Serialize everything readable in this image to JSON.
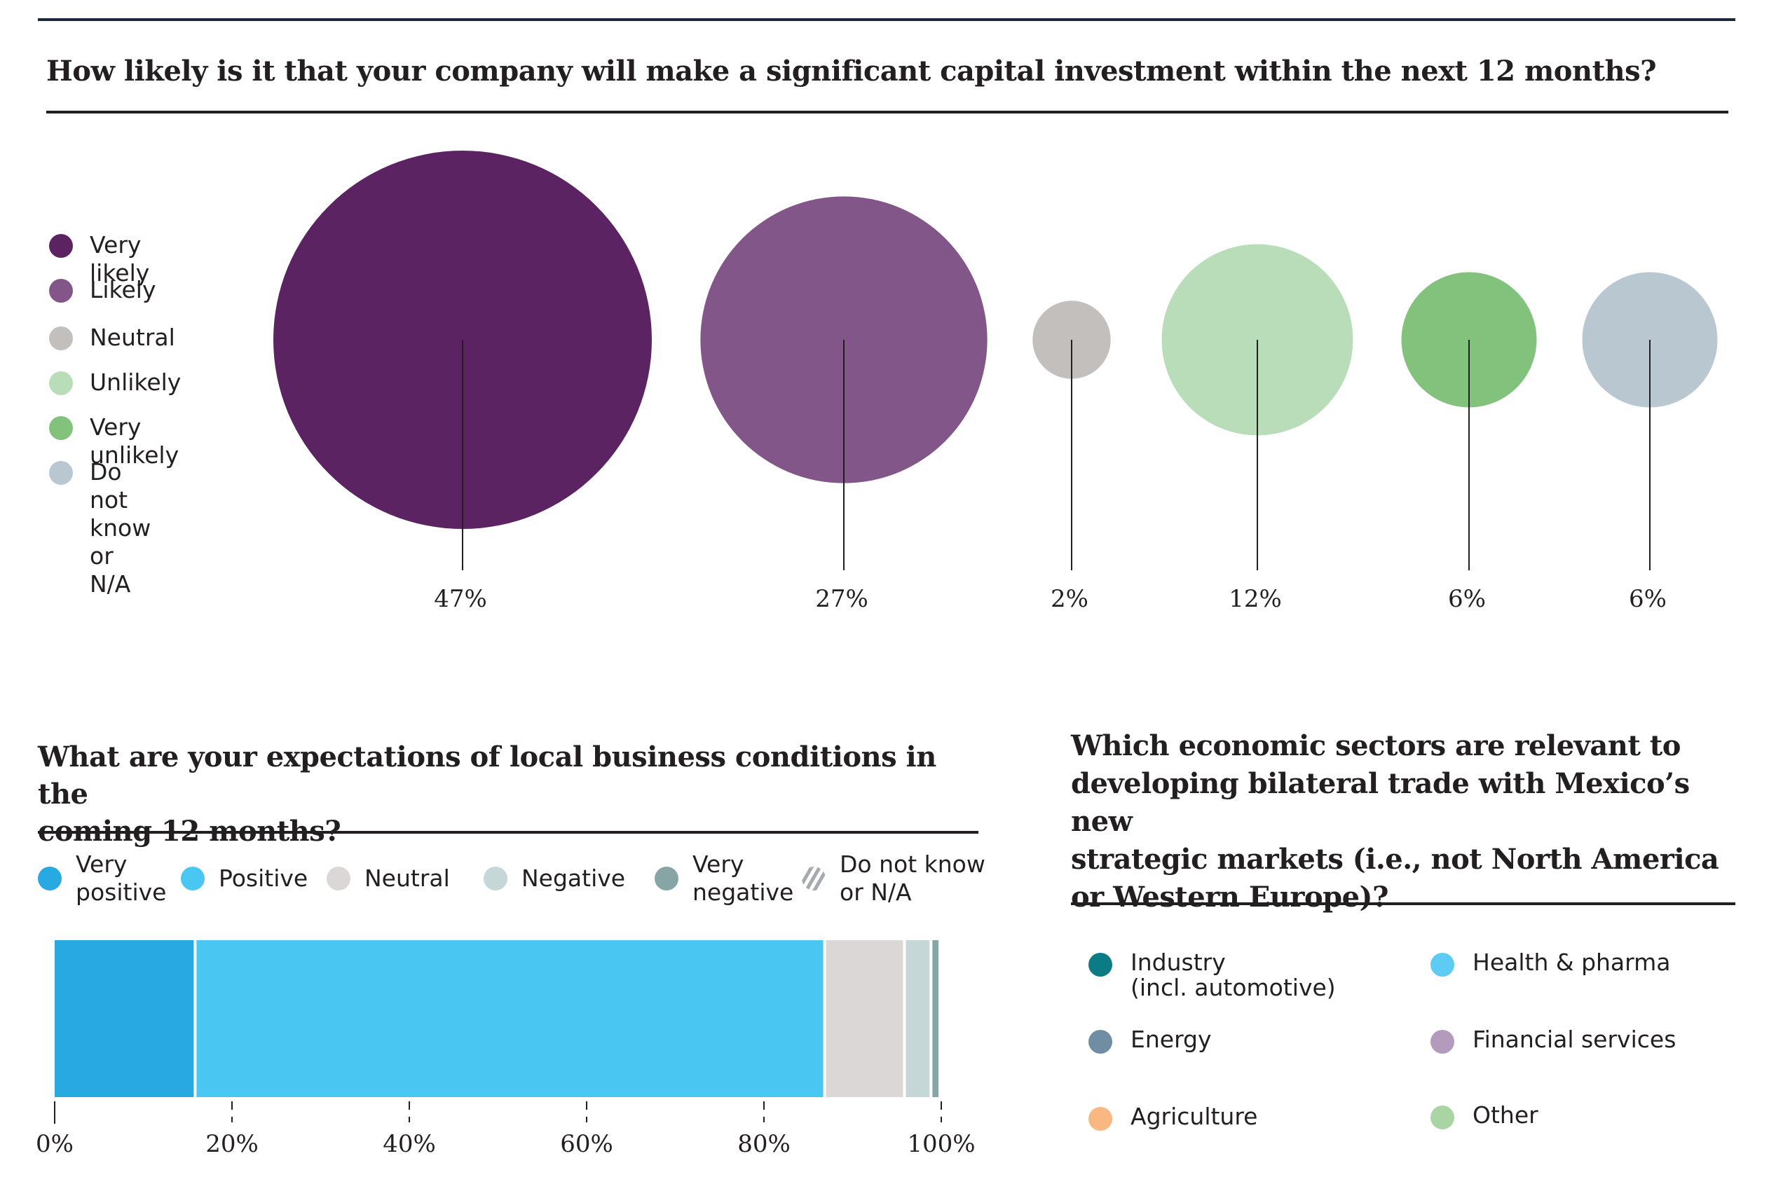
{
  "colors": {
    "ink": "#231f20",
    "very_likely": "#5c2363",
    "likely": "#835689",
    "neutral_bubble": "#c3bfbd",
    "unlikely": "#b8ddb8",
    "very_unlikely": "#82c27c",
    "do_not_know_bubble": "#b9c7d0",
    "very_positive": "#29a9e1",
    "positive": "#49c6f1",
    "neutral_bar": "#dad7d6",
    "negative": "#c5d7d7",
    "very_negative": "#87a5a4",
    "dnk_hatch": "#a7a9ac",
    "industry": "#0b7b86",
    "health": "#5ecbf5",
    "energy": "#6f8ea4",
    "financial": "#b49bbd",
    "agriculture": "#f9b882",
    "other": "#a9d4a4"
  },
  "chart_data": [
    {
      "type": "bubble",
      "title": "How likely is it that your company will make a significant capital investment within the next 12 months?",
      "legend_position": "left",
      "categories": [
        "Very likely",
        "Likely",
        "Neutral",
        "Unlikely",
        "Very unlikely",
        "Do not know or N/A"
      ],
      "legend_labels": [
        "Very likely",
        "Likely",
        "Neutral",
        "Unlikely",
        "Very unlikely",
        "Do not know\nor N/A"
      ],
      "values": [
        47,
        27,
        2,
        12,
        6,
        6
      ],
      "value_labels": [
        "47%",
        "27%",
        "2%",
        "12%",
        "6%",
        "6%"
      ],
      "unit": "%"
    },
    {
      "type": "bar",
      "stacked": true,
      "orientation": "horizontal",
      "title": "What are your expectations of local business conditions in the coming 12 months?",
      "legend_position": "top",
      "categories": [
        "Very positive",
        "Positive",
        "Neutral",
        "Negative",
        "Very negative",
        "Do not know or N/A"
      ],
      "legend_labels": [
        "Very\npositive",
        "Positive",
        "Neutral",
        "Negative",
        "Very\nnegative",
        "Do not know\nor N/A"
      ],
      "values": [
        16,
        71,
        9,
        3,
        1,
        0
      ],
      "xlim": [
        0,
        100
      ],
      "xticks": [
        0,
        20,
        40,
        60,
        80,
        100
      ],
      "xtick_labels": [
        "0%",
        "20%",
        "40%",
        "60%",
        "80%",
        "100%"
      ],
      "xlabel": "",
      "ylabel": ""
    },
    {
      "type": "legend-only",
      "title": "Which economic sectors are relevant to developing bilateral trade with Mexico’s new strategic markets (i.e., not North America or Western Europe)?",
      "title_lines": [
        "Which economic sectors are relevant to",
        "developing bilateral trade with Mexico’s new",
        "strategic markets (i.e., not North America",
        "or Western Europe)?"
      ],
      "categories": [
        "Industry (incl. automotive)",
        "Health & pharma",
        "Energy",
        "Financial services",
        "Agriculture",
        "Other"
      ],
      "legend_labels": [
        "Industry\n(incl. automotive)",
        "Health & pharma",
        "Energy",
        "Financial services",
        "Agriculture",
        "Other"
      ]
    }
  ],
  "q2_title_lines": [
    "What are your expectations of local business conditions in the",
    "coming 12 months?"
  ]
}
